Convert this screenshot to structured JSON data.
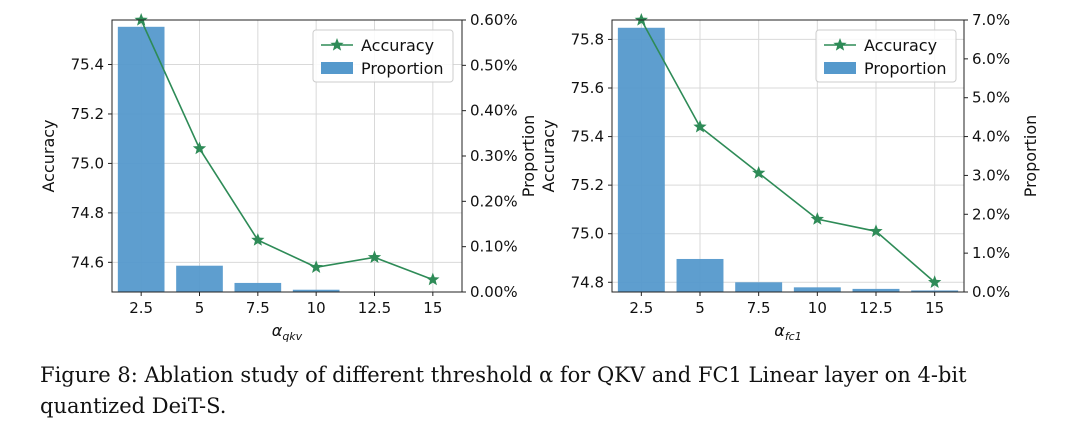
{
  "caption": "Figure 8: Ablation study of different threshold α for QKV and FC1 Linear layer on 4-bit quantized DeiT-S.",
  "colors": {
    "bar": "#5599CC",
    "line": "#2E8B57",
    "grid": "#d9d9d9"
  },
  "chart_data": [
    {
      "type": "bar+line",
      "categories": [
        "2.5",
        "5",
        "7.5",
        "10",
        "12.5",
        "15"
      ],
      "xlabel_base": "α",
      "xlabel_sub": "qkv",
      "ylabel_left": "Accuracy",
      "ylabel_right": "Proportion",
      "ylim_left": [
        74.48,
        75.58
      ],
      "yticks_left": [
        "74.6",
        "74.8",
        "75.0",
        "75.2",
        "75.4"
      ],
      "ylim_right": [
        0,
        0.6
      ],
      "yticks_right": [
        "0.00%",
        "0.10%",
        "0.20%",
        "0.30%",
        "0.40%",
        "0.50%",
        "0.60%"
      ],
      "grid": true,
      "legend_position": "top-right",
      "series": [
        {
          "name": "Accuracy",
          "kind": "line",
          "marker": "star",
          "axis": "left",
          "values": [
            75.58,
            75.06,
            74.69,
            74.58,
            74.62,
            74.53
          ]
        },
        {
          "name": "Proportion",
          "kind": "bar",
          "axis": "right",
          "values": [
            0.585,
            0.058,
            0.02,
            0.005,
            0.0,
            0.0
          ]
        }
      ]
    },
    {
      "type": "bar+line",
      "categories": [
        "2.5",
        "5",
        "7.5",
        "10",
        "12.5",
        "15"
      ],
      "xlabel_base": "α",
      "xlabel_sub": "fc1",
      "ylabel_left": "Accuracy",
      "ylabel_right": "Proportion",
      "ylim_left": [
        74.76,
        75.88
      ],
      "yticks_left": [
        "74.8",
        "75.0",
        "75.2",
        "75.4",
        "75.6",
        "75.8"
      ],
      "ylim_right": [
        0,
        7.0
      ],
      "yticks_right": [
        "0.0%",
        "1.0%",
        "2.0%",
        "3.0%",
        "4.0%",
        "5.0%",
        "6.0%",
        "7.0%"
      ],
      "grid": true,
      "legend_position": "top-right",
      "series": [
        {
          "name": "Accuracy",
          "kind": "line",
          "marker": "star",
          "axis": "left",
          "values": [
            75.88,
            75.44,
            75.25,
            75.06,
            75.01,
            74.8
          ]
        },
        {
          "name": "Proportion",
          "kind": "bar",
          "axis": "right",
          "values": [
            6.8,
            0.85,
            0.25,
            0.12,
            0.08,
            0.04
          ]
        }
      ]
    }
  ]
}
